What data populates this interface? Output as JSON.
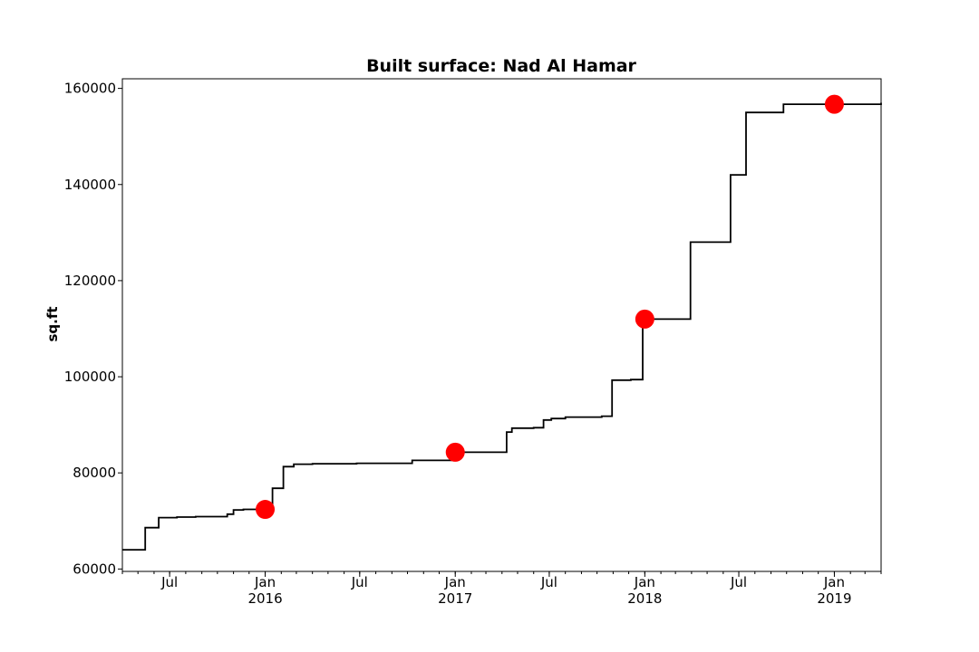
{
  "chart_data": {
    "type": "line",
    "title": "Built surface: Nad Al Hamar",
    "xlabel": "",
    "ylabel": "sq.ft",
    "xlim": [
      "2015-04-01",
      "2019-04-01"
    ],
    "ylim": [
      59500,
      162000
    ],
    "grid": false,
    "legend": "none",
    "yticks": [
      60000,
      80000,
      100000,
      120000,
      140000,
      160000
    ],
    "xticks": [
      {
        "date": "2015-07-01",
        "label": "Jul",
        "sublabel": ""
      },
      {
        "date": "2016-01-01",
        "label": "Jan",
        "sublabel": "2016"
      },
      {
        "date": "2016-07-01",
        "label": "Jul",
        "sublabel": ""
      },
      {
        "date": "2017-01-01",
        "label": "Jan",
        "sublabel": "2017"
      },
      {
        "date": "2017-07-01",
        "label": "Jul",
        "sublabel": ""
      },
      {
        "date": "2018-01-01",
        "label": "Jan",
        "sublabel": "2018"
      },
      {
        "date": "2018-07-01",
        "label": "Jul",
        "sublabel": ""
      },
      {
        "date": "2019-01-01",
        "label": "Jan",
        "sublabel": "2019"
      }
    ],
    "series": [
      {
        "style": "step",
        "color": "#000000",
        "points": [
          [
            "2015-04-01",
            64000
          ],
          [
            "2015-05-15",
            68600
          ],
          [
            "2015-06-01",
            68600
          ],
          [
            "2015-06-10",
            70700
          ],
          [
            "2015-07-15",
            70800
          ],
          [
            "2015-08-20",
            70900
          ],
          [
            "2015-10-20",
            71400
          ],
          [
            "2015-11-01",
            72300
          ],
          [
            "2015-11-20",
            72400
          ],
          [
            "2016-01-15",
            76800
          ],
          [
            "2016-02-05",
            81300
          ],
          [
            "2016-02-25",
            81800
          ],
          [
            "2016-04-01",
            81900
          ],
          [
            "2016-06-25",
            82000
          ],
          [
            "2016-10-10",
            82600
          ],
          [
            "2016-12-25",
            84300
          ],
          [
            "2017-04-10",
            88500
          ],
          [
            "2017-04-20",
            89300
          ],
          [
            "2017-06-01",
            89400
          ],
          [
            "2017-06-20",
            91000
          ],
          [
            "2017-07-05",
            91300
          ],
          [
            "2017-08-01",
            91600
          ],
          [
            "2017-10-10",
            91800
          ],
          [
            "2017-10-30",
            99300
          ],
          [
            "2017-12-05",
            99400
          ],
          [
            "2017-12-28",
            112000
          ],
          [
            "2018-03-30",
            128000
          ],
          [
            "2018-06-15",
            142000
          ],
          [
            "2018-07-15",
            155000
          ],
          [
            "2018-09-25",
            156700
          ],
          [
            "2019-04-01",
            157000
          ]
        ]
      },
      {
        "style": "markers",
        "color": "#ff0000",
        "points": [
          [
            "2016-01-01",
            72400
          ],
          [
            "2017-01-01",
            84300
          ],
          [
            "2018-01-01",
            112000
          ],
          [
            "2019-01-01",
            156700
          ]
        ]
      }
    ]
  }
}
